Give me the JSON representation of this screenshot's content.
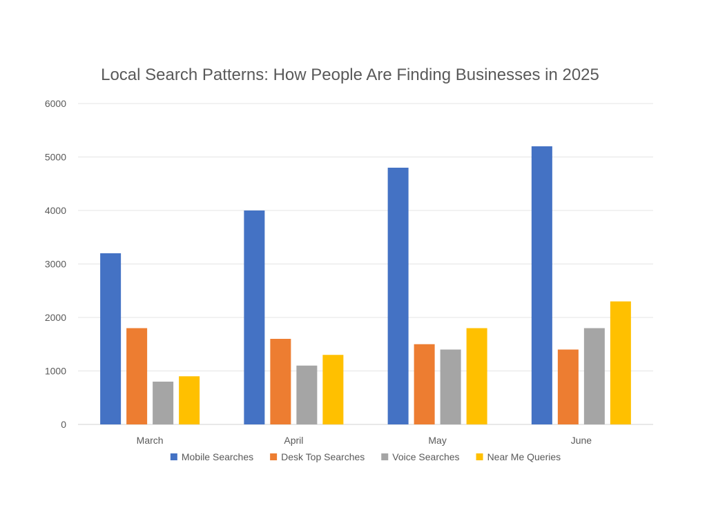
{
  "chart_data": {
    "type": "bar",
    "title": "Local Search Patterns: How People Are Finding Businesses in 2025",
    "xlabel": "",
    "ylabel": "",
    "categories": [
      "March",
      "April",
      "May",
      "June"
    ],
    "ylim": [
      0,
      6000
    ],
    "yticks": [
      0,
      1000,
      2000,
      3000,
      4000,
      5000,
      6000
    ],
    "grid": true,
    "legend_position": "bottom",
    "series": [
      {
        "name": "Mobile Searches",
        "color": "#4472C4",
        "values": [
          3200,
          4000,
          4800,
          5200
        ]
      },
      {
        "name": "Desk Top Searches",
        "color": "#ED7D31",
        "values": [
          1800,
          1600,
          1500,
          1400
        ]
      },
      {
        "name": "Voice Searches",
        "color": "#A5A5A5",
        "values": [
          800,
          1100,
          1400,
          1800
        ]
      },
      {
        "name": "Near Me Queries",
        "color": "#FFC000",
        "values": [
          900,
          1300,
          1800,
          2300
        ]
      }
    ]
  }
}
